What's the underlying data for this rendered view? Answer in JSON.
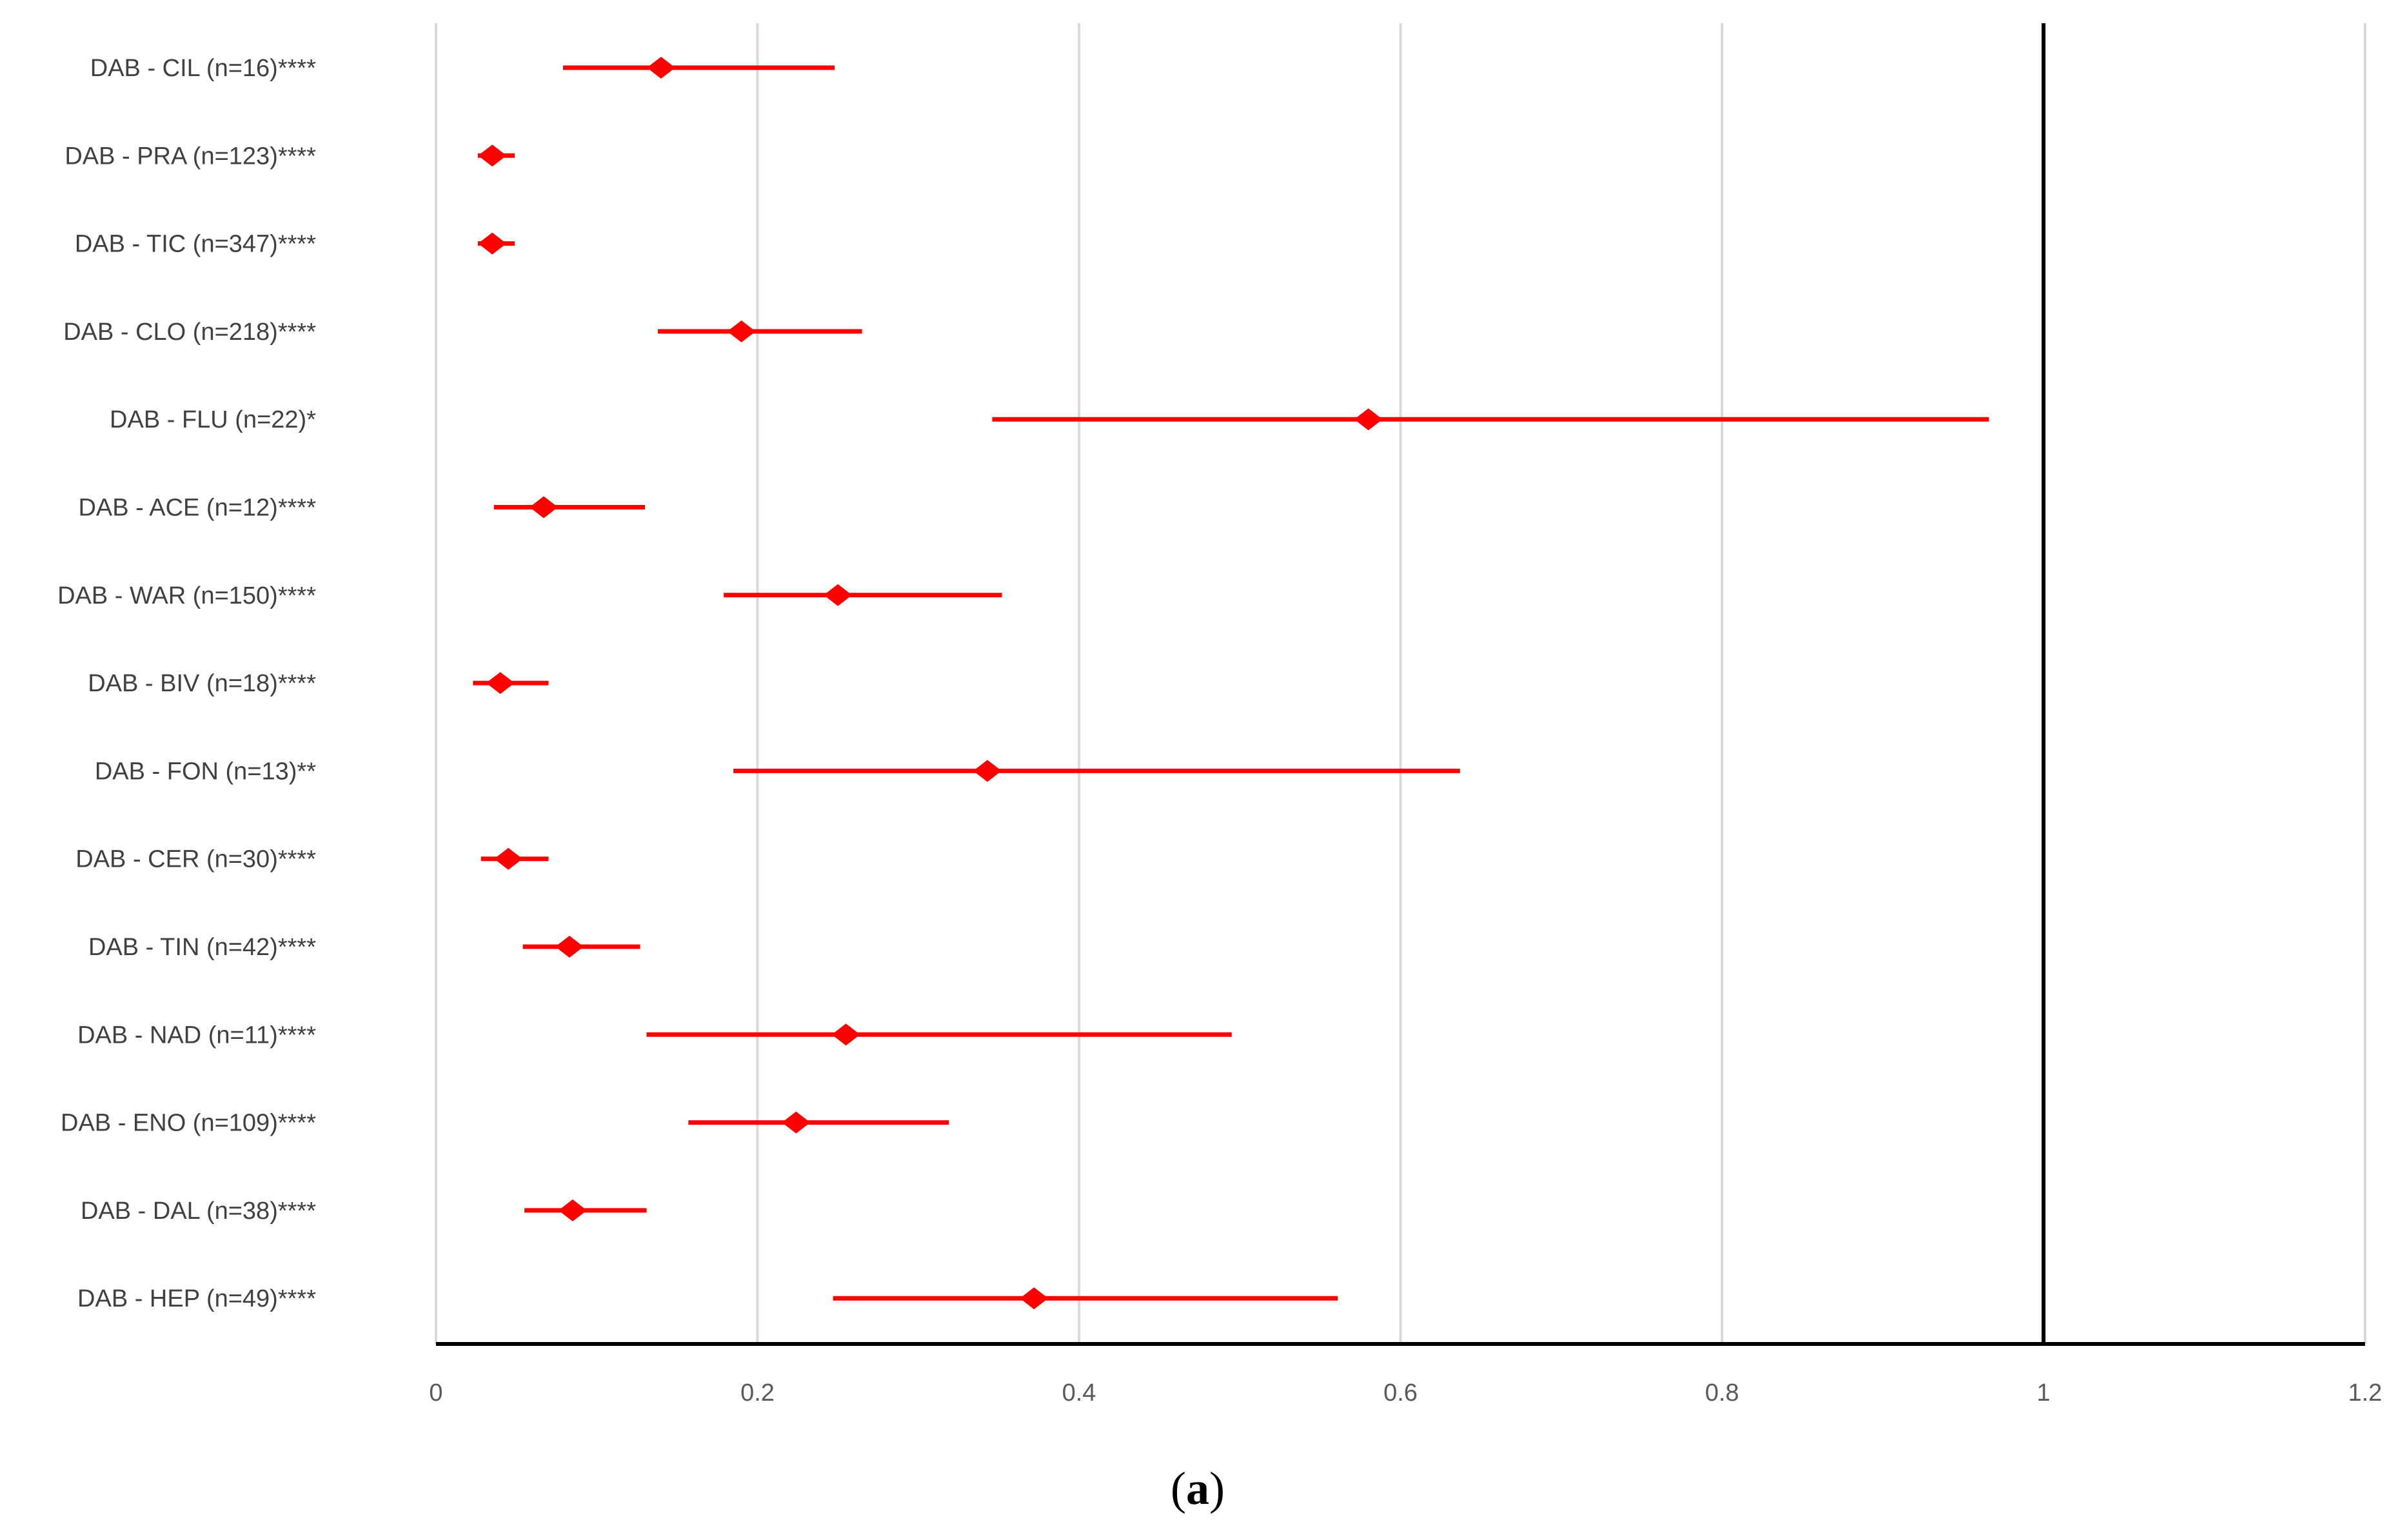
{
  "chart_data": {
    "type": "forest",
    "categories": [
      "DAB - CIL (n=16)****",
      "DAB - PRA (n=123)****",
      "DAB - TIC (n=347)****",
      "DAB - CLO (n=218)****",
      "DAB - FLU (n=22)*",
      "DAB - ACE (n=12)****",
      "DAB - WAR (n=150)****",
      "DAB - BIV (n=18)****",
      "DAB - FON (n=13)**",
      "DAB - CER (n=30)****",
      "DAB - TIN (n=42)****",
      "DAB - NAD (n=11)****",
      "DAB - ENO (n=109)****",
      "DAB - DAL (n=38)****",
      "DAB - HEP (n=49)****"
    ],
    "estimates": [
      0.14,
      0.035,
      0.035,
      0.19,
      0.58,
      0.067,
      0.25,
      0.04,
      0.343,
      0.045,
      0.083,
      0.255,
      0.224,
      0.085,
      0.372
    ],
    "lower": [
      0.079,
      0.026,
      0.026,
      0.138,
      0.346,
      0.036,
      0.179,
      0.023,
      0.185,
      0.028,
      0.054,
      0.131,
      0.157,
      0.055,
      0.247
    ],
    "upper": [
      0.248,
      0.049,
      0.049,
      0.265,
      0.966,
      0.13,
      0.352,
      0.07,
      0.637,
      0.07,
      0.127,
      0.495,
      0.319,
      0.131,
      0.561
    ],
    "xlim": [
      0,
      1.2
    ],
    "x_ticks": [
      "0",
      "0.2",
      "0.4",
      "0.6",
      "0.8",
      "1",
      "1.2"
    ],
    "reference_line": 1,
    "grid": true,
    "colors": {
      "marker": "#ff0000",
      "grid": "#d9d9d9",
      "axis": "#000000"
    }
  },
  "caption": {
    "open": "(",
    "letter": "a",
    "close": ")"
  }
}
